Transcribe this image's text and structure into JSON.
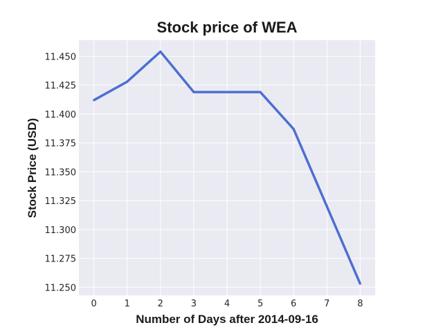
{
  "chart_data": {
    "type": "line",
    "title": "Stock price of WEA",
    "xlabel": "Number of Days after 2014-09-16",
    "ylabel": "Stock Price (USD)",
    "x": [
      0,
      1,
      2,
      3,
      4,
      5,
      6,
      7,
      8
    ],
    "series": [
      {
        "values": [
          11.412,
          11.428,
          11.454,
          11.419,
          11.419,
          11.419,
          11.387,
          11.32,
          11.253
        ],
        "color": "#4c6fd1"
      }
    ],
    "xlim": [
      -0.45,
      8.45
    ],
    "ylim": [
      11.243,
      11.464
    ],
    "x_ticks": [
      "0",
      "1",
      "2",
      "3",
      "4",
      "5",
      "6",
      "7",
      "8"
    ],
    "y_ticks": [
      "11.250",
      "11.275",
      "11.300",
      "11.325",
      "11.350",
      "11.375",
      "11.400",
      "11.425",
      "11.450"
    ],
    "grid": true,
    "background": "#eaeaf2",
    "grid_color": "#ffffff"
  }
}
